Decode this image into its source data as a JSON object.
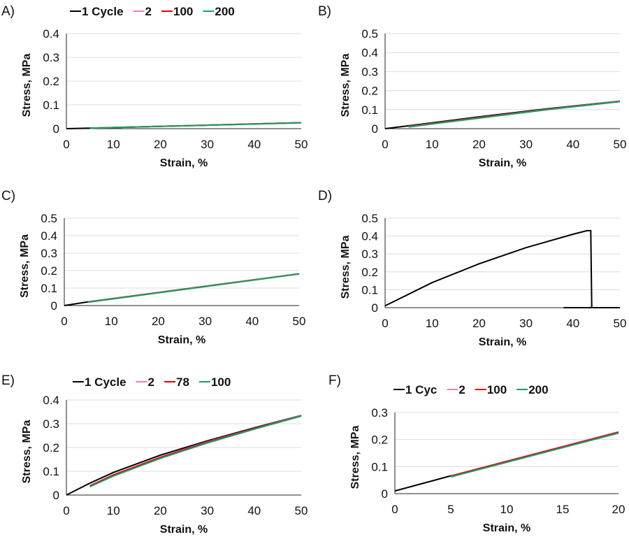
{
  "colors": {
    "1 Cycle": "#000000",
    "2": "#f07ac8",
    "100": "#e00000",
    "200": "#1aa060",
    "78": "#e00000"
  },
  "chart_data": [
    {
      "type": "line",
      "panel": "A)",
      "xlabel": "Strain, %",
      "ylabel": "Stress, MPa",
      "xlim": [
        0,
        50
      ],
      "ylim": [
        0,
        0.4
      ],
      "xticks": [
        "0",
        "10",
        "20",
        "30",
        "40",
        "50"
      ],
      "yticks": [
        "0",
        "0.1",
        "0.2",
        "0.3",
        "0.4"
      ],
      "grid": true,
      "legend": "top",
      "series": [
        {
          "name": "1 Cycle",
          "color": "#000000",
          "points": [
            [
              0,
              0
            ],
            [
              5,
              0.002
            ],
            [
              50,
              0.025
            ]
          ]
        },
        {
          "name": "2",
          "color": "#f07ac8",
          "points": [
            [
              5,
              0.002
            ],
            [
              50,
              0.025
            ]
          ]
        },
        {
          "name": "100",
          "color": "#e00000",
          "points": [
            [
              5,
              0.002
            ],
            [
              50,
              0.025
            ]
          ]
        },
        {
          "name": "200",
          "color": "#1aa060",
          "points": [
            [
              5,
              0.002
            ],
            [
              50,
              0.024
            ]
          ]
        }
      ]
    },
    {
      "type": "line",
      "panel": "B)",
      "xlabel": "Strain, %",
      "ylabel": "Stress, MPa",
      "xlim": [
        0,
        50
      ],
      "ylim": [
        0,
        0.5
      ],
      "xticks": [
        "0",
        "10",
        "20",
        "30",
        "40",
        "50"
      ],
      "yticks": [
        "0",
        "0.1",
        "0.2",
        "0.3",
        "0.4",
        "0.5"
      ],
      "grid": true,
      "legend": "none",
      "series": [
        {
          "name": "1 Cycle",
          "color": "#000000",
          "points": [
            [
              0,
              0
            ],
            [
              5,
              0.015
            ],
            [
              20,
              0.062
            ],
            [
              35,
              0.106
            ],
            [
              50,
              0.145
            ]
          ]
        },
        {
          "name": "2",
          "color": "#f07ac8",
          "points": [
            [
              5,
              0.012
            ],
            [
              20,
              0.058
            ],
            [
              35,
              0.103
            ],
            [
              50,
              0.144
            ]
          ]
        },
        {
          "name": "100",
          "color": "#e00000",
          "points": [
            [
              5,
              0.011
            ],
            [
              20,
              0.057
            ],
            [
              35,
              0.102
            ],
            [
              50,
              0.143
            ]
          ]
        },
        {
          "name": "200",
          "color": "#1aa060",
          "points": [
            [
              5,
              0.009
            ],
            [
              20,
              0.055
            ],
            [
              35,
              0.101
            ],
            [
              50,
              0.142
            ]
          ]
        }
      ]
    },
    {
      "type": "line",
      "panel": "C)",
      "xlabel": "Strain, %",
      "ylabel": "Stress, MPa",
      "xlim": [
        0,
        50
      ],
      "ylim": [
        0,
        0.5
      ],
      "xticks": [
        "0",
        "10",
        "20",
        "30",
        "40",
        "50"
      ],
      "yticks": [
        "0",
        "0.1",
        "0.2",
        "0.3",
        "0.4",
        "0.5"
      ],
      "grid": true,
      "legend": "none",
      "series": [
        {
          "name": "1 Cycle",
          "color": "#000000",
          "points": [
            [
              0,
              0
            ],
            [
              5,
              0.021
            ],
            [
              50,
              0.182
            ]
          ]
        },
        {
          "name": "2",
          "color": "#f07ac8",
          "points": [
            [
              5,
              0.02
            ],
            [
              50,
              0.182
            ]
          ]
        },
        {
          "name": "100",
          "color": "#e00000",
          "points": [
            [
              5,
              0.02
            ],
            [
              50,
              0.181
            ]
          ]
        },
        {
          "name": "200",
          "color": "#1aa060",
          "points": [
            [
              5,
              0.019
            ],
            [
              50,
              0.181
            ]
          ]
        }
      ]
    },
    {
      "type": "line",
      "panel": "D)",
      "xlabel": "Strain, %",
      "ylabel": "Stress, MPa",
      "xlim": [
        0,
        50
      ],
      "ylim": [
        0,
        0.5
      ],
      "xticks": [
        "0",
        "10",
        "20",
        "30",
        "40",
        "50"
      ],
      "yticks": [
        "0",
        "0.1",
        "0.2",
        "0.3",
        "0.4",
        "0.5"
      ],
      "grid": true,
      "legend": "none",
      "series": [
        {
          "name": "1 Cycle",
          "color": "#000000",
          "points": [
            [
              0,
              0.01
            ],
            [
              10,
              0.14
            ],
            [
              20,
              0.245
            ],
            [
              30,
              0.335
            ],
            [
              40,
              0.41
            ],
            [
              43,
              0.43
            ],
            [
              43.8,
              0.43
            ],
            [
              44,
              0.0
            ],
            [
              38,
              0.0
            ],
            [
              50,
              0.0
            ]
          ]
        }
      ]
    },
    {
      "type": "line",
      "panel": "E)",
      "xlabel": "Strain, %",
      "ylabel": "Stress, MPa",
      "xlim": [
        0,
        50
      ],
      "ylim": [
        0,
        0.4
      ],
      "xticks": [
        "0",
        "10",
        "20",
        "30",
        "40",
        "50"
      ],
      "yticks": [
        "0",
        "0.1",
        "0.2",
        "0.3",
        "0.4"
      ],
      "grid": true,
      "legend": "top",
      "series": [
        {
          "name": "1 Cycle",
          "color": "#000000",
          "points": [
            [
              0,
              0
            ],
            [
              5,
              0.05
            ],
            [
              10,
              0.095
            ],
            [
              20,
              0.168
            ],
            [
              30,
              0.228
            ],
            [
              40,
              0.283
            ],
            [
              50,
              0.335
            ]
          ]
        },
        {
          "name": "2",
          "color": "#f07ac8",
          "points": [
            [
              5,
              0.04
            ],
            [
              10,
              0.086
            ],
            [
              20,
              0.16
            ],
            [
              30,
              0.224
            ],
            [
              40,
              0.28
            ],
            [
              50,
              0.334
            ]
          ]
        },
        {
          "name": "78",
          "color": "#e00000",
          "points": [
            [
              5,
              0.038
            ],
            [
              10,
              0.084
            ],
            [
              20,
              0.158
            ],
            [
              30,
              0.222
            ],
            [
              40,
              0.279
            ],
            [
              50,
              0.333
            ]
          ]
        },
        {
          "name": "100",
          "color": "#1aa060",
          "points": [
            [
              5,
              0.035
            ],
            [
              10,
              0.08
            ],
            [
              20,
              0.154
            ],
            [
              30,
              0.219
            ],
            [
              40,
              0.277
            ],
            [
              50,
              0.332
            ]
          ]
        }
      ]
    },
    {
      "type": "line",
      "panel": "F)",
      "xlabel": "Strain, %",
      "ylabel": "Stress, MPa",
      "xlim": [
        0,
        20
      ],
      "ylim": [
        0,
        0.3
      ],
      "xticks": [
        "0",
        "5",
        "10",
        "15",
        "20"
      ],
      "yticks": [
        "0",
        "0.1",
        "0.2",
        "0.3"
      ],
      "grid": true,
      "legend": "top",
      "series": [
        {
          "name": "1 Cyc",
          "color": "#000000",
          "points": [
            [
              0,
              0.01
            ],
            [
              5,
              0.066
            ]
          ]
        },
        {
          "name": "2",
          "color": "#f07ac8",
          "points": [
            [
              5,
              0.066
            ],
            [
              20,
              0.229
            ]
          ]
        },
        {
          "name": "100",
          "color": "#e00000",
          "points": [
            [
              5,
              0.065
            ],
            [
              20,
              0.227
            ]
          ]
        },
        {
          "name": "200",
          "color": "#1aa060",
          "points": [
            [
              5,
              0.062
            ],
            [
              20,
              0.224
            ]
          ]
        }
      ]
    }
  ]
}
